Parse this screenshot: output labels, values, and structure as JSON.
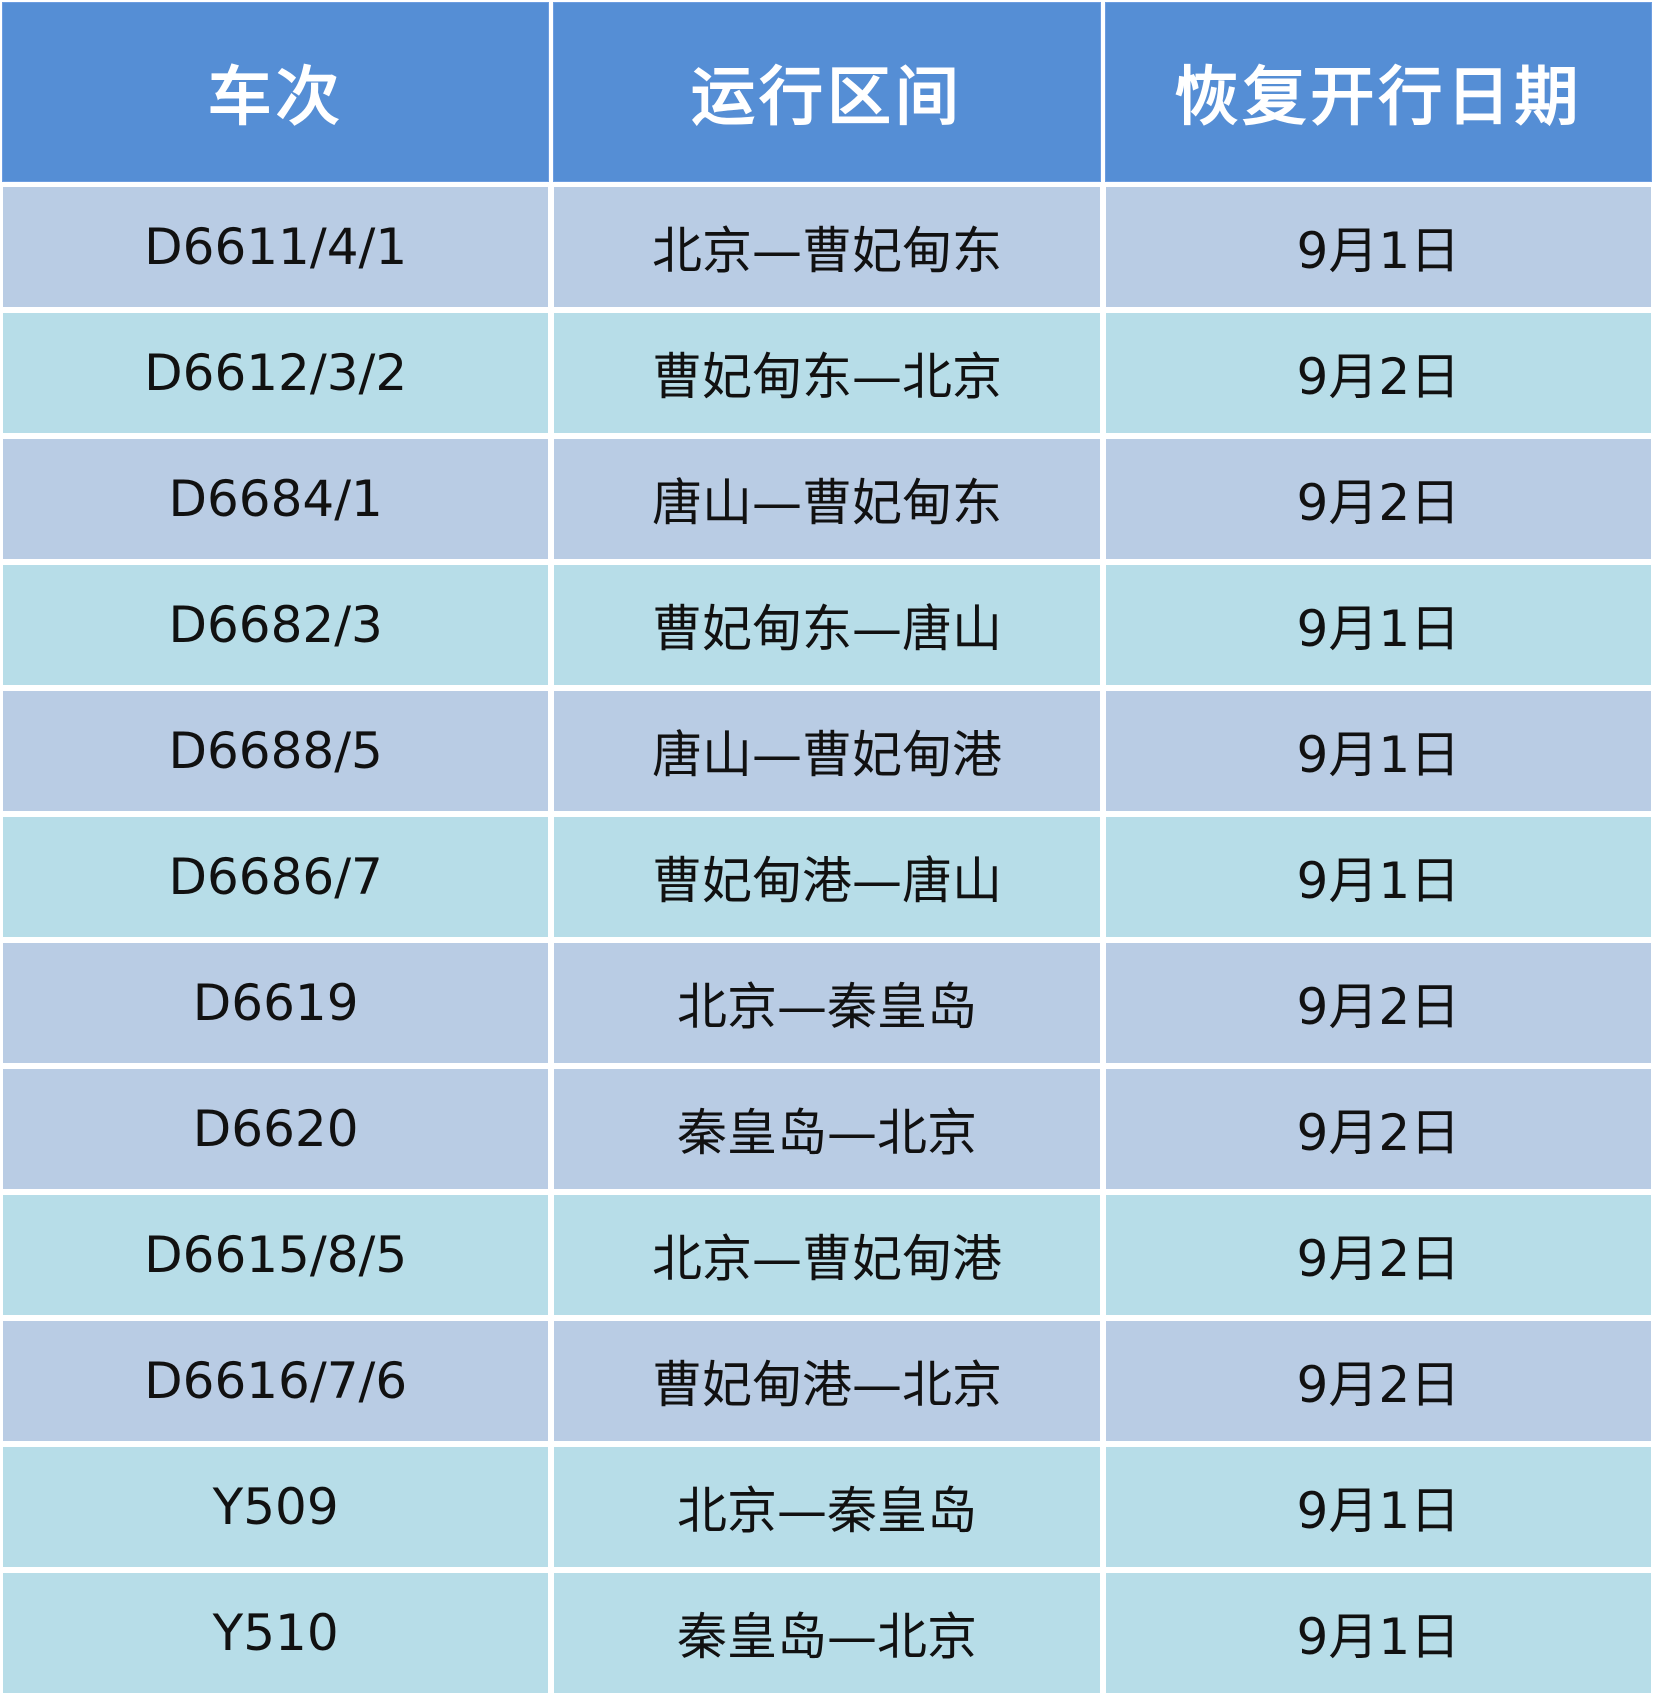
{
  "table": {
    "headers": [
      "车次",
      "运行区间",
      "恢复开行日期"
    ],
    "colors": {
      "header": "#558ed5",
      "row_blue": "#b9cce4",
      "row_cyan": "#b7dde8"
    },
    "rows": [
      {
        "train": "D6611/4/1",
        "route": "北京—曹妃甸东",
        "date": "9月1日",
        "shade": "blue"
      },
      {
        "train": "D6612/3/2",
        "route": "曹妃甸东—北京",
        "date": "9月2日",
        "shade": "cyan"
      },
      {
        "train": "D6684/1",
        "route": "唐山—曹妃甸东",
        "date": "9月2日",
        "shade": "blue"
      },
      {
        "train": "D6682/3",
        "route": "曹妃甸东—唐山",
        "date": "9月1日",
        "shade": "cyan"
      },
      {
        "train": "D6688/5",
        "route": "唐山—曹妃甸港",
        "date": "9月1日",
        "shade": "blue"
      },
      {
        "train": "D6686/7",
        "route": "曹妃甸港—唐山",
        "date": "9月1日",
        "shade": "cyan"
      },
      {
        "train": "D6619",
        "route": "北京—秦皇岛",
        "date": "9月2日",
        "shade": "blue"
      },
      {
        "train": "D6620",
        "route": "秦皇岛—北京",
        "date": "9月2日",
        "shade": "blue"
      },
      {
        "train": "D6615/8/5",
        "route": "北京—曹妃甸港",
        "date": "9月2日",
        "shade": "cyan"
      },
      {
        "train": "D6616/7/6",
        "route": "曹妃甸港—北京",
        "date": "9月2日",
        "shade": "blue"
      },
      {
        "train": "Y509",
        "route": "北京—秦皇岛",
        "date": "9月1日",
        "shade": "cyan"
      },
      {
        "train": "Y510",
        "route": "秦皇岛—北京",
        "date": "9月1日",
        "shade": "cyan"
      }
    ]
  }
}
